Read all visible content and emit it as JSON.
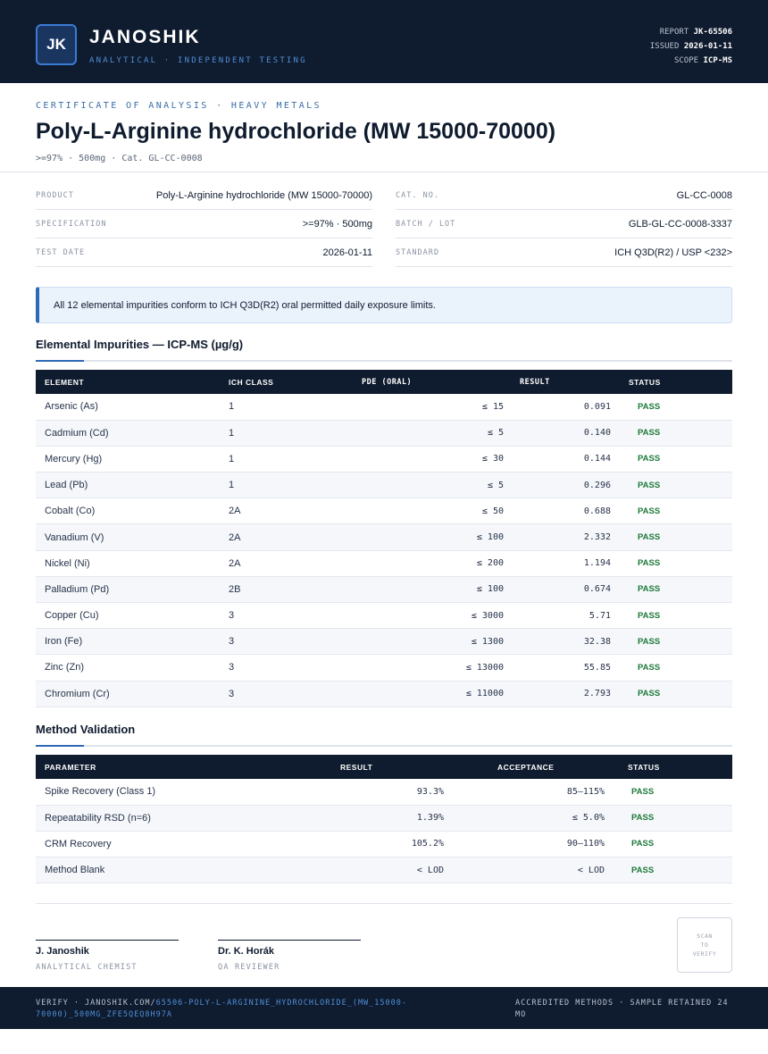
{
  "header": {
    "logo_initials": "JK",
    "brand": "JANOSHIK",
    "tagline": "ANALYTICAL · INDEPENDENT TESTING",
    "report_label": "REPORT",
    "report_value": "JK-65506",
    "issued_label": "ISSUED",
    "issued_value": "2026-01-11",
    "scope_label": "SCOPE",
    "scope_value": "ICP-MS"
  },
  "title_block": {
    "eyebrow": "CERTIFICATE OF ANALYSIS · HEAVY METALS",
    "title": "Poly-L-Arginine hydrochloride (MW 15000-70000)",
    "subline": ">=97% · 500mg  ·  Cat. GL-CC-0008"
  },
  "info": {
    "product_label": "PRODUCT",
    "product_value": "Poly-L-Arginine hydrochloride (MW 15000-70000)",
    "spec_label": "SPECIFICATION",
    "spec_value": ">=97% · 500mg",
    "date_label": "TEST DATE",
    "date_value": "2026-01-11",
    "cat_label": "CAT. NO.",
    "cat_value": "GL-CC-0008",
    "batch_label": "BATCH / LOT",
    "batch_value": "GLB-GL-CC-0008-3337",
    "standard_label": "STANDARD",
    "standard_value": "ICH Q3D(R2) / USP <232>"
  },
  "banner": {
    "text": "All 12 elemental impurities conform to ICH Q3D(R2) oral permitted daily exposure limits."
  },
  "impurities": {
    "title": "Elemental Impurities — ICP-MS (µg/g)",
    "headers": [
      "ELEMENT",
      "ICH CLASS",
      "PDE (ORAL)",
      "RESULT",
      "STATUS"
    ],
    "rows": [
      [
        "Arsenic (As)",
        "1",
        "≤ 15",
        "0.091",
        "PASS"
      ],
      [
        "Cadmium (Cd)",
        "1",
        "≤ 5",
        "0.140",
        "PASS"
      ],
      [
        "Mercury (Hg)",
        "1",
        "≤ 30",
        "0.144",
        "PASS"
      ],
      [
        "Lead (Pb)",
        "1",
        "≤ 5",
        "0.296",
        "PASS"
      ],
      [
        "Cobalt (Co)",
        "2A",
        "≤ 50",
        "0.688",
        "PASS"
      ],
      [
        "Vanadium (V)",
        "2A",
        "≤ 100",
        "2.332",
        "PASS"
      ],
      [
        "Nickel (Ni)",
        "2A",
        "≤ 200",
        "1.194",
        "PASS"
      ],
      [
        "Palladium (Pd)",
        "2B",
        "≤ 100",
        "0.674",
        "PASS"
      ],
      [
        "Copper (Cu)",
        "3",
        "≤ 3000",
        "5.71",
        "PASS"
      ],
      [
        "Iron (Fe)",
        "3",
        "≤ 1300",
        "32.38",
        "PASS"
      ],
      [
        "Zinc (Zn)",
        "3",
        "≤ 13000",
        "55.85",
        "PASS"
      ],
      [
        "Chromium (Cr)",
        "3",
        "≤ 11000",
        "2.793",
        "PASS"
      ]
    ]
  },
  "validation": {
    "title": "Method Validation",
    "headers": [
      "PARAMETER",
      "RESULT",
      "ACCEPTANCE",
      "STATUS"
    ],
    "rows": [
      [
        "Spike Recovery (Class 1)",
        "93.3%",
        "85–115%",
        "PASS"
      ],
      [
        "Repeatability RSD (n=6)",
        "1.39%",
        "≤ 5.0%",
        "PASS"
      ],
      [
        "CRM Recovery",
        "105.2%",
        "90–110%",
        "PASS"
      ],
      [
        "Method Blank",
        "< LOD",
        "< LOD",
        "PASS"
      ]
    ]
  },
  "signatures": {
    "sig1_name": "J. Janoshik",
    "sig1_role": "ANALYTICAL CHEMIST",
    "sig2_name": "Dr. K. Horák",
    "sig2_role": "QA REVIEWER",
    "qr_line1": "SCAN",
    "qr_line2": "TO",
    "qr_line3": "VERIFY"
  },
  "footer": {
    "verify_prefix": "VERIFY · JANOSHIK.COM/",
    "verify_link": "65506-POLY-L-ARGININE_HYDROCHLORIDE_(MW_15000-70000)_500MG_ZFE5QEQ8H97A",
    "right_text": "ACCREDITED METHODS · SAMPLE RETAINED 24 MO"
  },
  "colors": {
    "navy": "#0f1b2e",
    "accent": "#2d69b5",
    "pass": "#1f7a3c",
    "banner_bg": "#eaf2fc"
  }
}
